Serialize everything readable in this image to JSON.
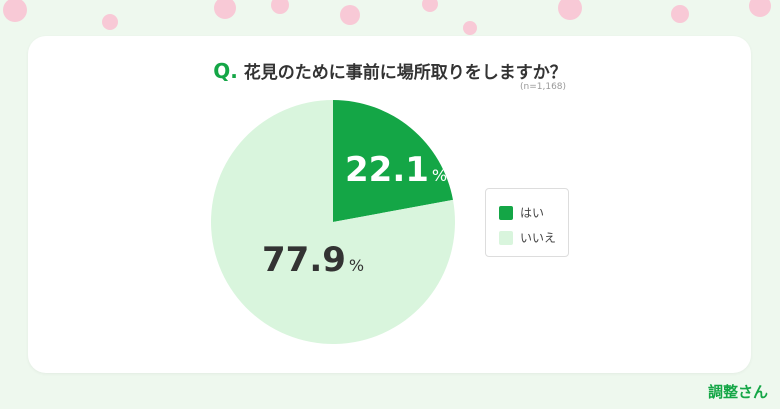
{
  "header": {
    "q_mark": "Q.",
    "question": "花見のために事前に場所取りをしますか？",
    "sample": "(n=1,168)"
  },
  "brand": "調整さん",
  "chart_data": {
    "type": "pie",
    "title": "花見のために事前に場所取りをしますか？",
    "categories": [
      "はい",
      "いいえ"
    ],
    "values": [
      22.1,
      77.9
    ],
    "unit": "%",
    "colors": [
      "#14a646",
      "#d9f5dd"
    ],
    "legend": "right",
    "start": "12 o'clock, clockwise"
  }
}
